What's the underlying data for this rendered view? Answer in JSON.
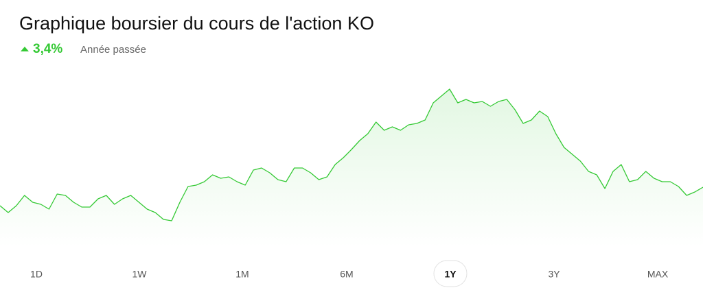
{
  "chart_data": {
    "type": "line",
    "title": "Graphique boursier du cours de l'action KO",
    "change": "3,4%",
    "period_label": "Année passée",
    "values": [
      60,
      50,
      60,
      75,
      65,
      62,
      55,
      77,
      75,
      65,
      58,
      58,
      70,
      75,
      62,
      70,
      75,
      65,
      55,
      50,
      40,
      38,
      65,
      88,
      90,
      95,
      105,
      100,
      102,
      95,
      90,
      112,
      115,
      108,
      98,
      95,
      115,
      115,
      108,
      98,
      102,
      120,
      130,
      142,
      155,
      165,
      182,
      170,
      175,
      170,
      178,
      180,
      185,
      210,
      220,
      230,
      210,
      215,
      210,
      212,
      205,
      212,
      215,
      200,
      180,
      185,
      198,
      190,
      165,
      145,
      135,
      125,
      110,
      105,
      85,
      110,
      120,
      95,
      98,
      110,
      100,
      95,
      95,
      88,
      75,
      80,
      87
    ],
    "ylim": [
      0,
      260
    ],
    "color": "#34c934",
    "ranges": [
      "1D",
      "1W",
      "1M",
      "6M",
      "1Y",
      "3Y",
      "MAX"
    ],
    "selected_range": "1Y"
  }
}
